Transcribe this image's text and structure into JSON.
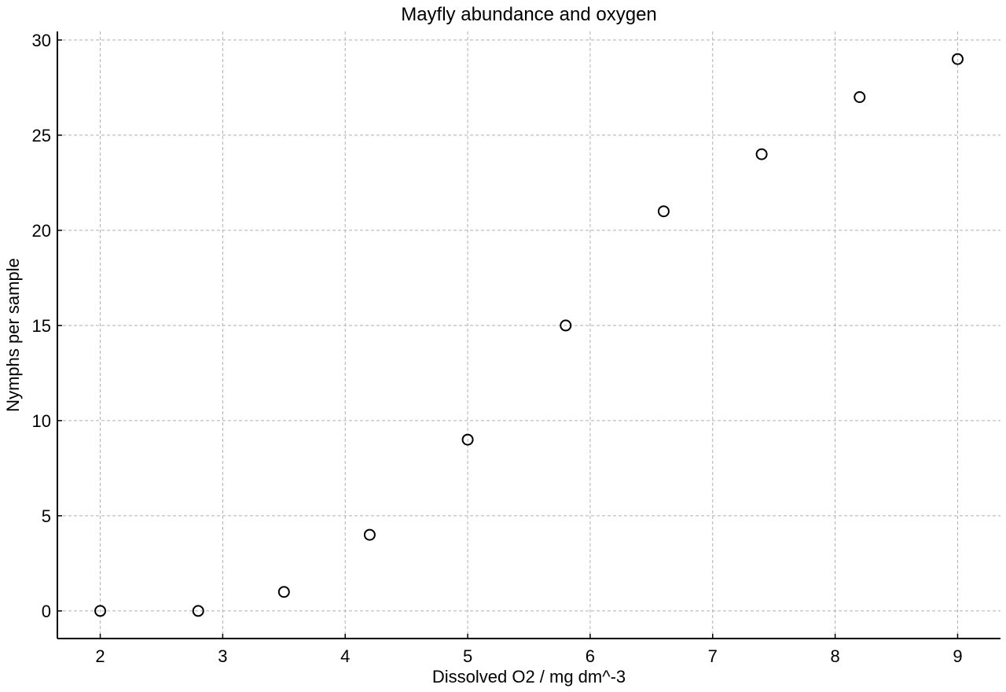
{
  "chart_data": {
    "type": "scatter",
    "title": "Mayfly abundance and oxygen",
    "xlabel": "Dissolved O2 / mg dm^-3",
    "ylabel": "Nymphs per sample",
    "xlim": [
      1.65,
      9.35
    ],
    "ylim": [
      -1.45,
      30.45
    ],
    "xticks": [
      2,
      3,
      4,
      5,
      6,
      7,
      8,
      9
    ],
    "yticks": [
      0,
      5,
      10,
      15,
      20,
      25,
      30
    ],
    "grid": true,
    "marker": "open-circle",
    "colors": {
      "marker": "#000000",
      "grid": "#b0b0b0",
      "axis": "#000000"
    },
    "series": [
      {
        "x": [
          2.0,
          2.8,
          3.5,
          4.2,
          5.0,
          5.8,
          6.6,
          7.4,
          8.2,
          9.0
        ],
        "y": [
          0,
          0,
          1,
          4,
          9,
          15,
          21,
          24,
          27,
          29
        ]
      }
    ]
  }
}
